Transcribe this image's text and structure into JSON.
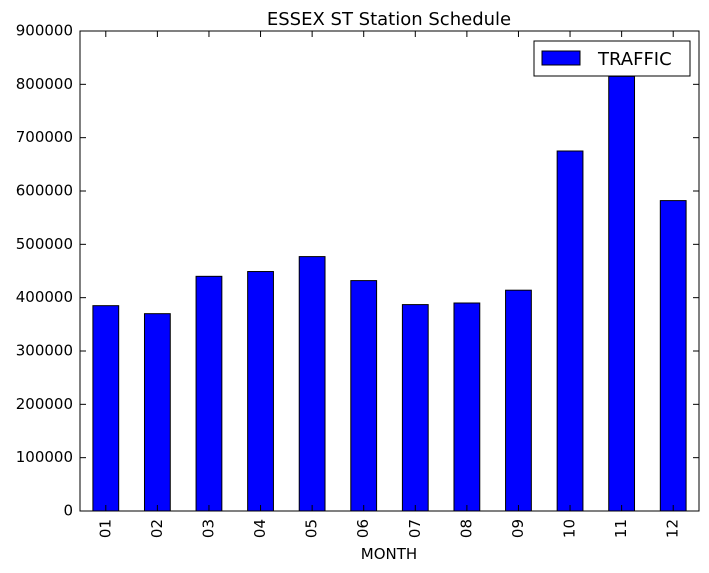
{
  "chart_data": {
    "type": "bar",
    "title": "ESSEX ST Station Schedule",
    "xlabel": "MONTH",
    "ylabel": "",
    "categories": [
      "01",
      "02",
      "03",
      "04",
      "05",
      "06",
      "07",
      "08",
      "09",
      "10",
      "11",
      "12"
    ],
    "series": [
      {
        "name": "TRAFFIC",
        "values": [
          385000,
          370000,
          440000,
          449000,
          477000,
          432000,
          387000,
          390000,
          414000,
          675000,
          815000,
          582000
        ]
      }
    ],
    "ylim": [
      0,
      900000
    ],
    "yticks": [
      "0",
      "100000",
      "200000",
      "300000",
      "400000",
      "500000",
      "600000",
      "700000",
      "800000",
      "900000"
    ],
    "grid": false,
    "legend": "top-right",
    "bar_color": "#0000ff",
    "edge_color": "#000000"
  }
}
